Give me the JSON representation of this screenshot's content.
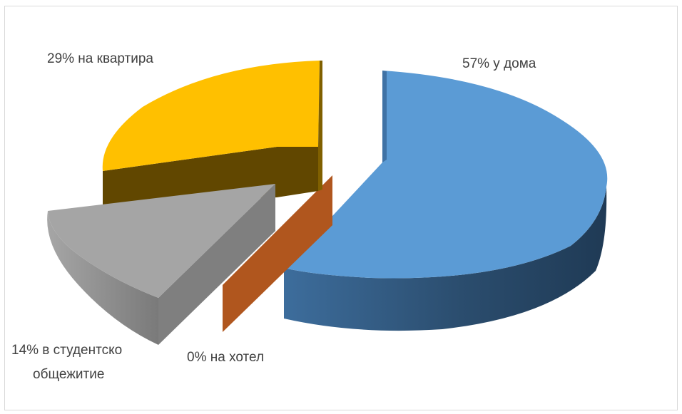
{
  "chart_data": {
    "type": "pie",
    "style": "3d-exploded",
    "slices": [
      {
        "name": "у дома",
        "value": 57,
        "label": "57% у дома",
        "color": "#5b9bd5",
        "side_color": "#2b4d6e"
      },
      {
        "name": "на хотел",
        "value": 0,
        "label": "0% на хотел",
        "color": "#c55a11",
        "side_color": "#b0561e"
      },
      {
        "name": "в студентско общежитие",
        "value": 14,
        "label_lines": [
          "14% в студентско",
          "общежитие"
        ],
        "color": "#a5a5a5",
        "side_color": "#7f7f7f"
      },
      {
        "name": "на квартира",
        "value": 29,
        "label": "29% на квартира",
        "color": "#ffc000",
        "side_color": "#614700"
      }
    ],
    "legend": "none",
    "data_labels": "outside"
  }
}
